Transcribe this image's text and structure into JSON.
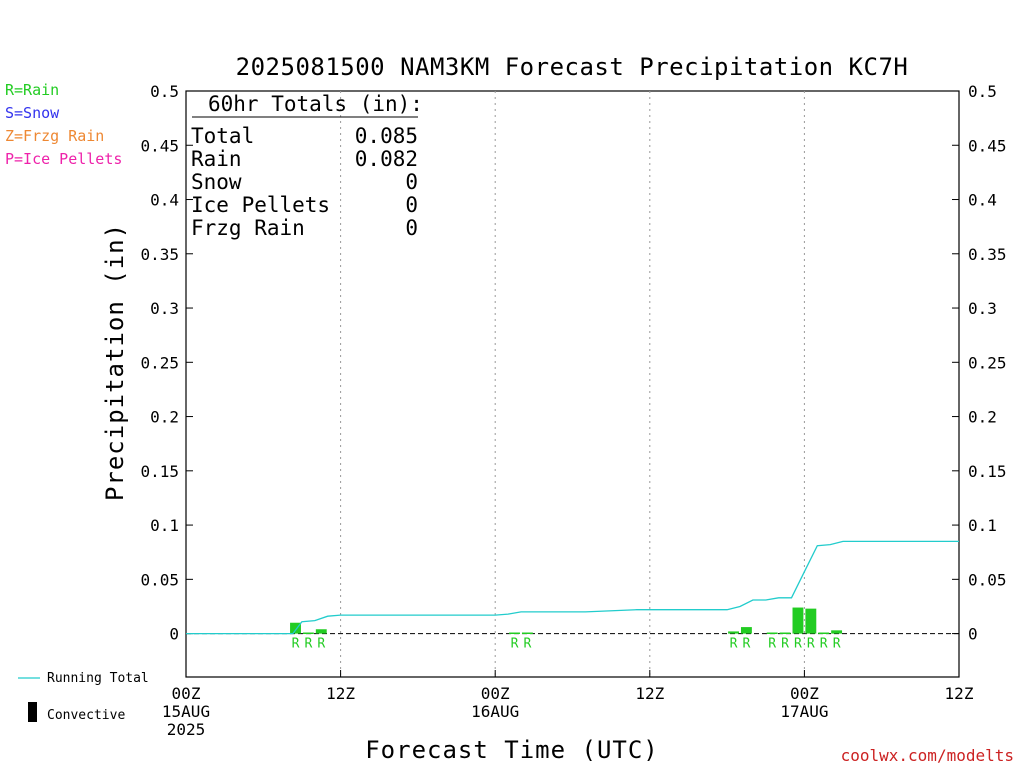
{
  "chart_data": {
    "type": "bar",
    "title": "2025081500 NAM3KM Forecast Precipitation KC7H",
    "ylabel": "Precipitation (in)",
    "xlabel": "Forecast Time (UTC)",
    "ylim": [
      -0.04,
      0.5
    ],
    "xlim_hours": [
      0,
      60
    ],
    "yticks": [
      0,
      0.05,
      0.1,
      0.15,
      0.2,
      0.25,
      0.3,
      0.35,
      0.4,
      0.45,
      0.5
    ],
    "ytick_labels": [
      "0",
      "0.05",
      "0.1",
      "0.15",
      "0.2",
      "0.25",
      "0.3",
      "0.35",
      "0.4",
      "0.45",
      "0.5"
    ],
    "xticks": [
      {
        "hour": 0,
        "lines": [
          "00Z",
          "15AUG",
          "2025"
        ]
      },
      {
        "hour": 12,
        "lines": [
          "12Z"
        ]
      },
      {
        "hour": 24,
        "lines": [
          "00Z",
          "16AUG"
        ]
      },
      {
        "hour": 36,
        "lines": [
          "12Z"
        ]
      },
      {
        "hour": 48,
        "lines": [
          "00Z",
          "17AUG"
        ]
      },
      {
        "hour": 60,
        "lines": [
          "12Z"
        ]
      }
    ],
    "grid_hours": [
      12,
      24,
      36,
      48
    ],
    "legend_types": [
      {
        "label": "R=Rain",
        "color": "#22cc22"
      },
      {
        "label": "S=Snow",
        "color": "#3333ee"
      },
      {
        "label": "Z=Frzg Rain",
        "color": "#ee8833"
      },
      {
        "label": "P=Ice Pellets",
        "color": "#ee22aa"
      }
    ],
    "totals": {
      "heading": "60hr Totals (in):",
      "rows": [
        {
          "label": "Total",
          "value": "0.085"
        },
        {
          "label": "Rain",
          "value": "0.082"
        },
        {
          "label": "Snow",
          "value": "0"
        },
        {
          "label": "Ice Pellets",
          "value": "0"
        },
        {
          "label": "Frzg Rain",
          "value": "0"
        }
      ]
    },
    "series": [
      {
        "name": "Running Total",
        "kind": "line",
        "color": "#22cccc",
        "points": [
          [
            0,
            0
          ],
          [
            8,
            0
          ],
          [
            8.3,
            0
          ],
          [
            9,
            0.011
          ],
          [
            10,
            0.012
          ],
          [
            11,
            0.016
          ],
          [
            12,
            0.017
          ],
          [
            20,
            0.017
          ],
          [
            24,
            0.017
          ],
          [
            25,
            0.018
          ],
          [
            26,
            0.02
          ],
          [
            31,
            0.02
          ],
          [
            35,
            0.022
          ],
          [
            42,
            0.022
          ],
          [
            43,
            0.025
          ],
          [
            44,
            0.031
          ],
          [
            45,
            0.031
          ],
          [
            46,
            0.033
          ],
          [
            47,
            0.033
          ],
          [
            48,
            0.057
          ],
          [
            49,
            0.081
          ],
          [
            50,
            0.082
          ],
          [
            51,
            0.085
          ],
          [
            60,
            0.085
          ]
        ]
      },
      {
        "name": "Convective",
        "kind": "bar",
        "color": "#000000"
      }
    ],
    "bars": [
      {
        "hour": 9,
        "value": 0.01,
        "type": "R",
        "color": "#22cc22"
      },
      {
        "hour": 10,
        "value": 0.001,
        "type": "R",
        "color": "#22cc22"
      },
      {
        "hour": 11,
        "value": 0.004,
        "type": "R",
        "color": "#22cc22"
      },
      {
        "hour": 26,
        "value": 0.001,
        "type": "R",
        "color": "#22cc22"
      },
      {
        "hour": 27,
        "value": 0.001,
        "type": "R",
        "color": "#22cc22"
      },
      {
        "hour": 43,
        "value": 0.002,
        "type": "R",
        "color": "#22cc22"
      },
      {
        "hour": 44,
        "value": 0.006,
        "type": "R",
        "color": "#22cc22"
      },
      {
        "hour": 46,
        "value": 0.001,
        "type": "R",
        "color": "#22cc22"
      },
      {
        "hour": 47,
        "value": 0.001,
        "type": "R",
        "color": "#22cc22"
      },
      {
        "hour": 48,
        "value": 0.024,
        "type": "R",
        "color": "#22cc22"
      },
      {
        "hour": 49,
        "value": 0.023,
        "type": "R",
        "color": "#22cc22"
      },
      {
        "hour": 50,
        "value": 0.001,
        "type": "R",
        "color": "#22cc22"
      },
      {
        "hour": 51,
        "value": 0.003,
        "type": "R",
        "color": "#22cc22"
      }
    ],
    "footer": "coolwx.com/modelts"
  }
}
